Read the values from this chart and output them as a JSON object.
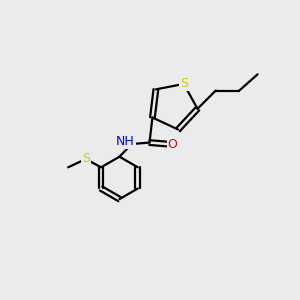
{
  "background_color": "#ebebeb",
  "bond_color": "#000000",
  "S_color": "#cccc00",
  "N_color": "#0000ee",
  "O_color": "#dd0000",
  "line_width": 1.6,
  "figsize": [
    3.0,
    3.0
  ],
  "dpi": 100,
  "xlim": [
    0,
    10
  ],
  "ylim": [
    0,
    10
  ]
}
